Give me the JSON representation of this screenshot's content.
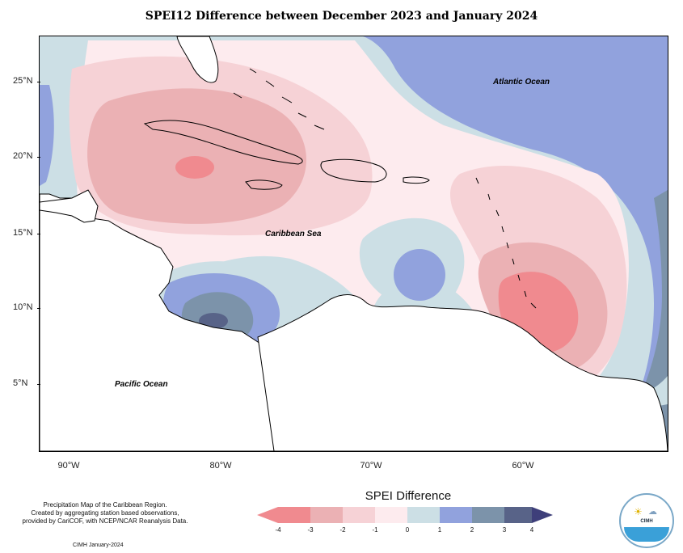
{
  "title": "SPEI12 Difference between December 2023 and January 2024",
  "map": {
    "lat_labels": [
      "25°N",
      "20°N",
      "15°N",
      "10°N",
      "5°N"
    ],
    "lon_labels": [
      "90°W",
      "80°W",
      "70°W",
      "60°W"
    ],
    "place_labels": {
      "atlantic": "Atlantic Ocean",
      "caribbean": "Caribbean Sea",
      "pacific": "Pacific Ocean"
    },
    "colors": {
      "neg4": "#f08a8f",
      "neg3": "#ebb1b4",
      "neg2": "#f6d2d6",
      "neg1": "#fdebee",
      "pos0": "#ccdfe5",
      "pos1": "#91a2dd",
      "pos2": "#7c93aa",
      "pos3": "#586388",
      "land": "#ffffff"
    }
  },
  "legend": {
    "title": "SPEI Difference",
    "ticks": [
      "-4",
      "-3",
      "-2",
      "-1",
      "0",
      "1",
      "2",
      "3",
      "4"
    ],
    "colors": [
      "#f08a8f",
      "#ebb1b4",
      "#f6d2d6",
      "#fdebee",
      "#ccdfe5",
      "#91a2dd",
      "#7c93aa",
      "#586388"
    ]
  },
  "notes": {
    "line1": "Precipitation Map of the Caribbean Region.",
    "line2": "Created by aggregating station based observations,",
    "line3": "provided by CariCOF, with NCEP/NCAR Reanalysis Data.",
    "credit": "CIMH January-2024"
  },
  "logo": {
    "text": "CIMH"
  }
}
